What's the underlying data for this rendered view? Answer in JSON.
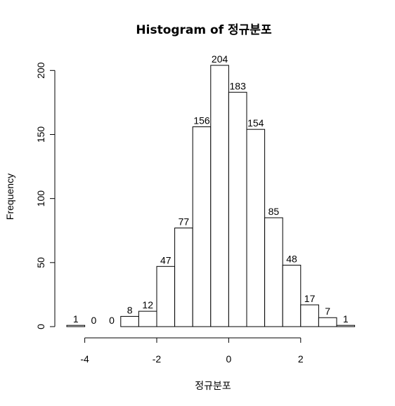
{
  "chart_data": {
    "type": "bar",
    "title": "Histogram of 정규분포",
    "xlabel": "정규분포",
    "ylabel": "Frequency",
    "bins": [
      {
        "start": -4.5,
        "end": -4.0,
        "count": 1
      },
      {
        "start": -4.0,
        "end": -3.5,
        "count": 0
      },
      {
        "start": -3.5,
        "end": -3.0,
        "count": 0
      },
      {
        "start": -3.0,
        "end": -2.5,
        "count": 8
      },
      {
        "start": -2.5,
        "end": -2.0,
        "count": 12
      },
      {
        "start": -2.0,
        "end": -1.5,
        "count": 47
      },
      {
        "start": -1.5,
        "end": -1.0,
        "count": 77
      },
      {
        "start": -1.0,
        "end": -0.5,
        "count": 156
      },
      {
        "start": -0.5,
        "end": 0.0,
        "count": 204
      },
      {
        "start": 0.0,
        "end": 0.5,
        "count": 183
      },
      {
        "start": 0.5,
        "end": 1.0,
        "count": 154
      },
      {
        "start": 1.0,
        "end": 1.5,
        "count": 85
      },
      {
        "start": 1.5,
        "end": 2.0,
        "count": 48
      },
      {
        "start": 2.0,
        "end": 2.5,
        "count": 17
      },
      {
        "start": 2.5,
        "end": 3.0,
        "count": 7
      },
      {
        "start": 3.0,
        "end": 3.5,
        "count": 1
      }
    ],
    "xticks": [
      "-4",
      "-2",
      "0",
      "2"
    ],
    "yticks": [
      "0",
      "50",
      "100",
      "150",
      "200"
    ],
    "xlim": [
      -4.5,
      3.5
    ],
    "ylim": [
      0,
      204
    ],
    "grid": false,
    "bar_fill": "#ffffff",
    "bar_stroke": "#000000"
  }
}
